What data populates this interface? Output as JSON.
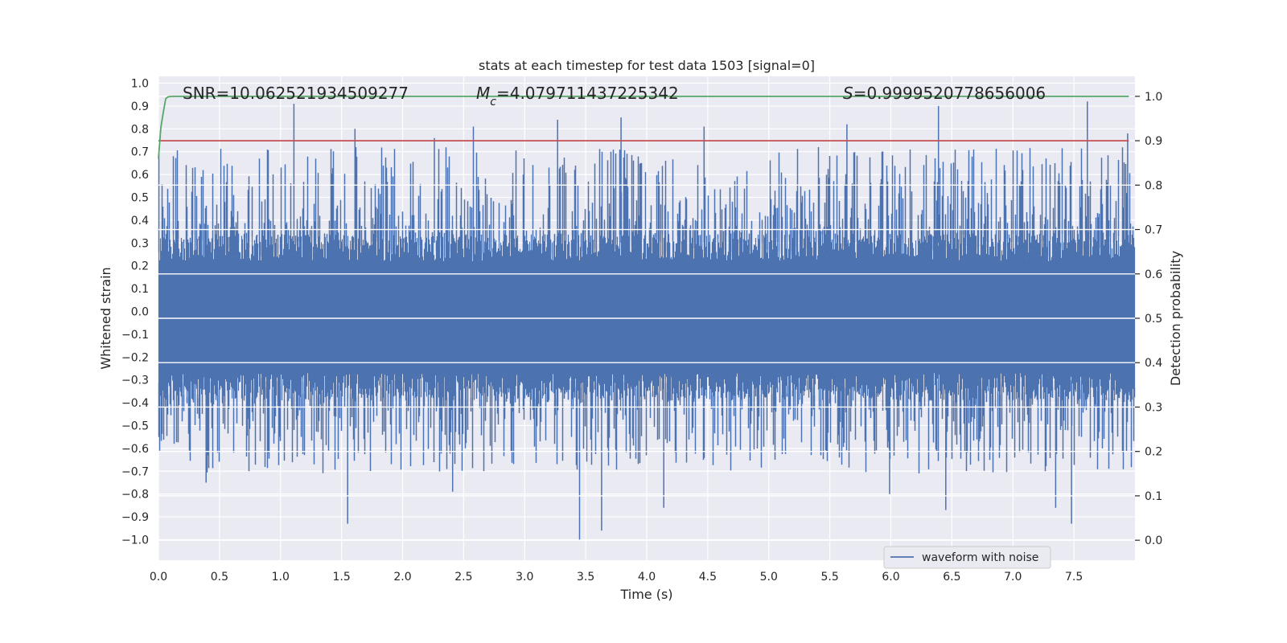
{
  "chart_data": {
    "type": "line",
    "title": "stats at each timestep for test data 1503 [signal=0]",
    "xlabel": "Time (s)",
    "ylabel": "Whitened strain",
    "y2label": "Detection probability",
    "xlim": [
      0.0,
      8.0
    ],
    "ylim": [
      -1.09,
      1.03
    ],
    "y2lim": [
      -0.045,
      1.045
    ],
    "grid": true,
    "background": "#eaeaf2",
    "xticks": [
      "0.0",
      "0.5",
      "1.0",
      "1.5",
      "2.0",
      "2.5",
      "3.0",
      "3.5",
      "4.0",
      "4.5",
      "5.0",
      "5.5",
      "6.0",
      "6.5",
      "7.0",
      "7.5"
    ],
    "yticks": [
      "1.0",
      "0.9",
      "0.8",
      "0.7",
      "0.6",
      "0.5",
      "0.4",
      "0.3",
      "0.2",
      "0.1",
      "0.0",
      "−0.1",
      "−0.2",
      "−0.3",
      "−0.4",
      "−0.5",
      "−0.6",
      "−0.7",
      "−0.8",
      "−0.9",
      "−1.0"
    ],
    "y2ticks": [
      "1.0",
      "0.9",
      "0.8",
      "0.7",
      "0.6",
      "0.5",
      "0.4",
      "0.3",
      "0.2",
      "0.1",
      "0.0"
    ],
    "annotations": {
      "snr": "SNR=10.062521934509277",
      "mc_symbol": "M",
      "mc_sub": "c",
      "mc_value": "=4.079711437225342",
      "s_symbol": "S",
      "s_value": "=0.9999520778656006"
    },
    "legend": {
      "label": "waveform with noise",
      "position": "lower-right"
    },
    "series": [
      {
        "name": "waveform with noise",
        "axis": "left",
        "color": "#4c72b0",
        "description": "whitened noisy strain, 2048 Hz sampled, approximately zero-mean with amplitude spanning -1.0 to 0.92",
        "ymin_observed": -1.0,
        "ymax_observed": 0.92,
        "peaks": [
          {
            "x": 1.11,
            "y": 0.91
          },
          {
            "x": 1.61,
            "y": 0.8
          },
          {
            "x": 2.26,
            "y": 0.76
          },
          {
            "x": 2.58,
            "y": 0.81
          },
          {
            "x": 3.27,
            "y": 0.84
          },
          {
            "x": 3.79,
            "y": 0.85
          },
          {
            "x": 4.47,
            "y": 0.81
          },
          {
            "x": 5.64,
            "y": 0.82
          },
          {
            "x": 6.39,
            "y": 0.9
          },
          {
            "x": 7.61,
            "y": 0.92
          },
          {
            "x": 7.94,
            "y": 0.78
          }
        ],
        "troughs": [
          {
            "x": 0.39,
            "y": -0.75
          },
          {
            "x": 1.55,
            "y": -0.93
          },
          {
            "x": 2.41,
            "y": -0.79
          },
          {
            "x": 3.45,
            "y": -1.0
          },
          {
            "x": 3.63,
            "y": -0.96
          },
          {
            "x": 4.14,
            "y": -0.86
          },
          {
            "x": 5.99,
            "y": -0.8
          },
          {
            "x": 6.45,
            "y": -0.87
          },
          {
            "x": 7.35,
            "y": -0.86
          },
          {
            "x": 7.48,
            "y": -0.93
          }
        ]
      },
      {
        "name": "detection probability",
        "axis": "right",
        "color": "#55a868",
        "x": [
          0.0,
          0.02,
          0.04,
          0.06,
          0.08,
          0.12,
          0.2,
          1.0,
          2.0,
          3.0,
          4.0,
          5.0,
          6.0,
          7.0,
          7.95
        ],
        "y": [
          0.86,
          0.93,
          0.965,
          0.995,
          0.999,
          1.0,
          1.0,
          1.0,
          1.0,
          1.0,
          1.0,
          1.0,
          1.0,
          1.0,
          1.0
        ]
      },
      {
        "name": "threshold",
        "axis": "right",
        "color": "#c44e52",
        "x": [
          0.0,
          7.95
        ],
        "y": [
          0.9,
          0.9
        ]
      }
    ]
  }
}
